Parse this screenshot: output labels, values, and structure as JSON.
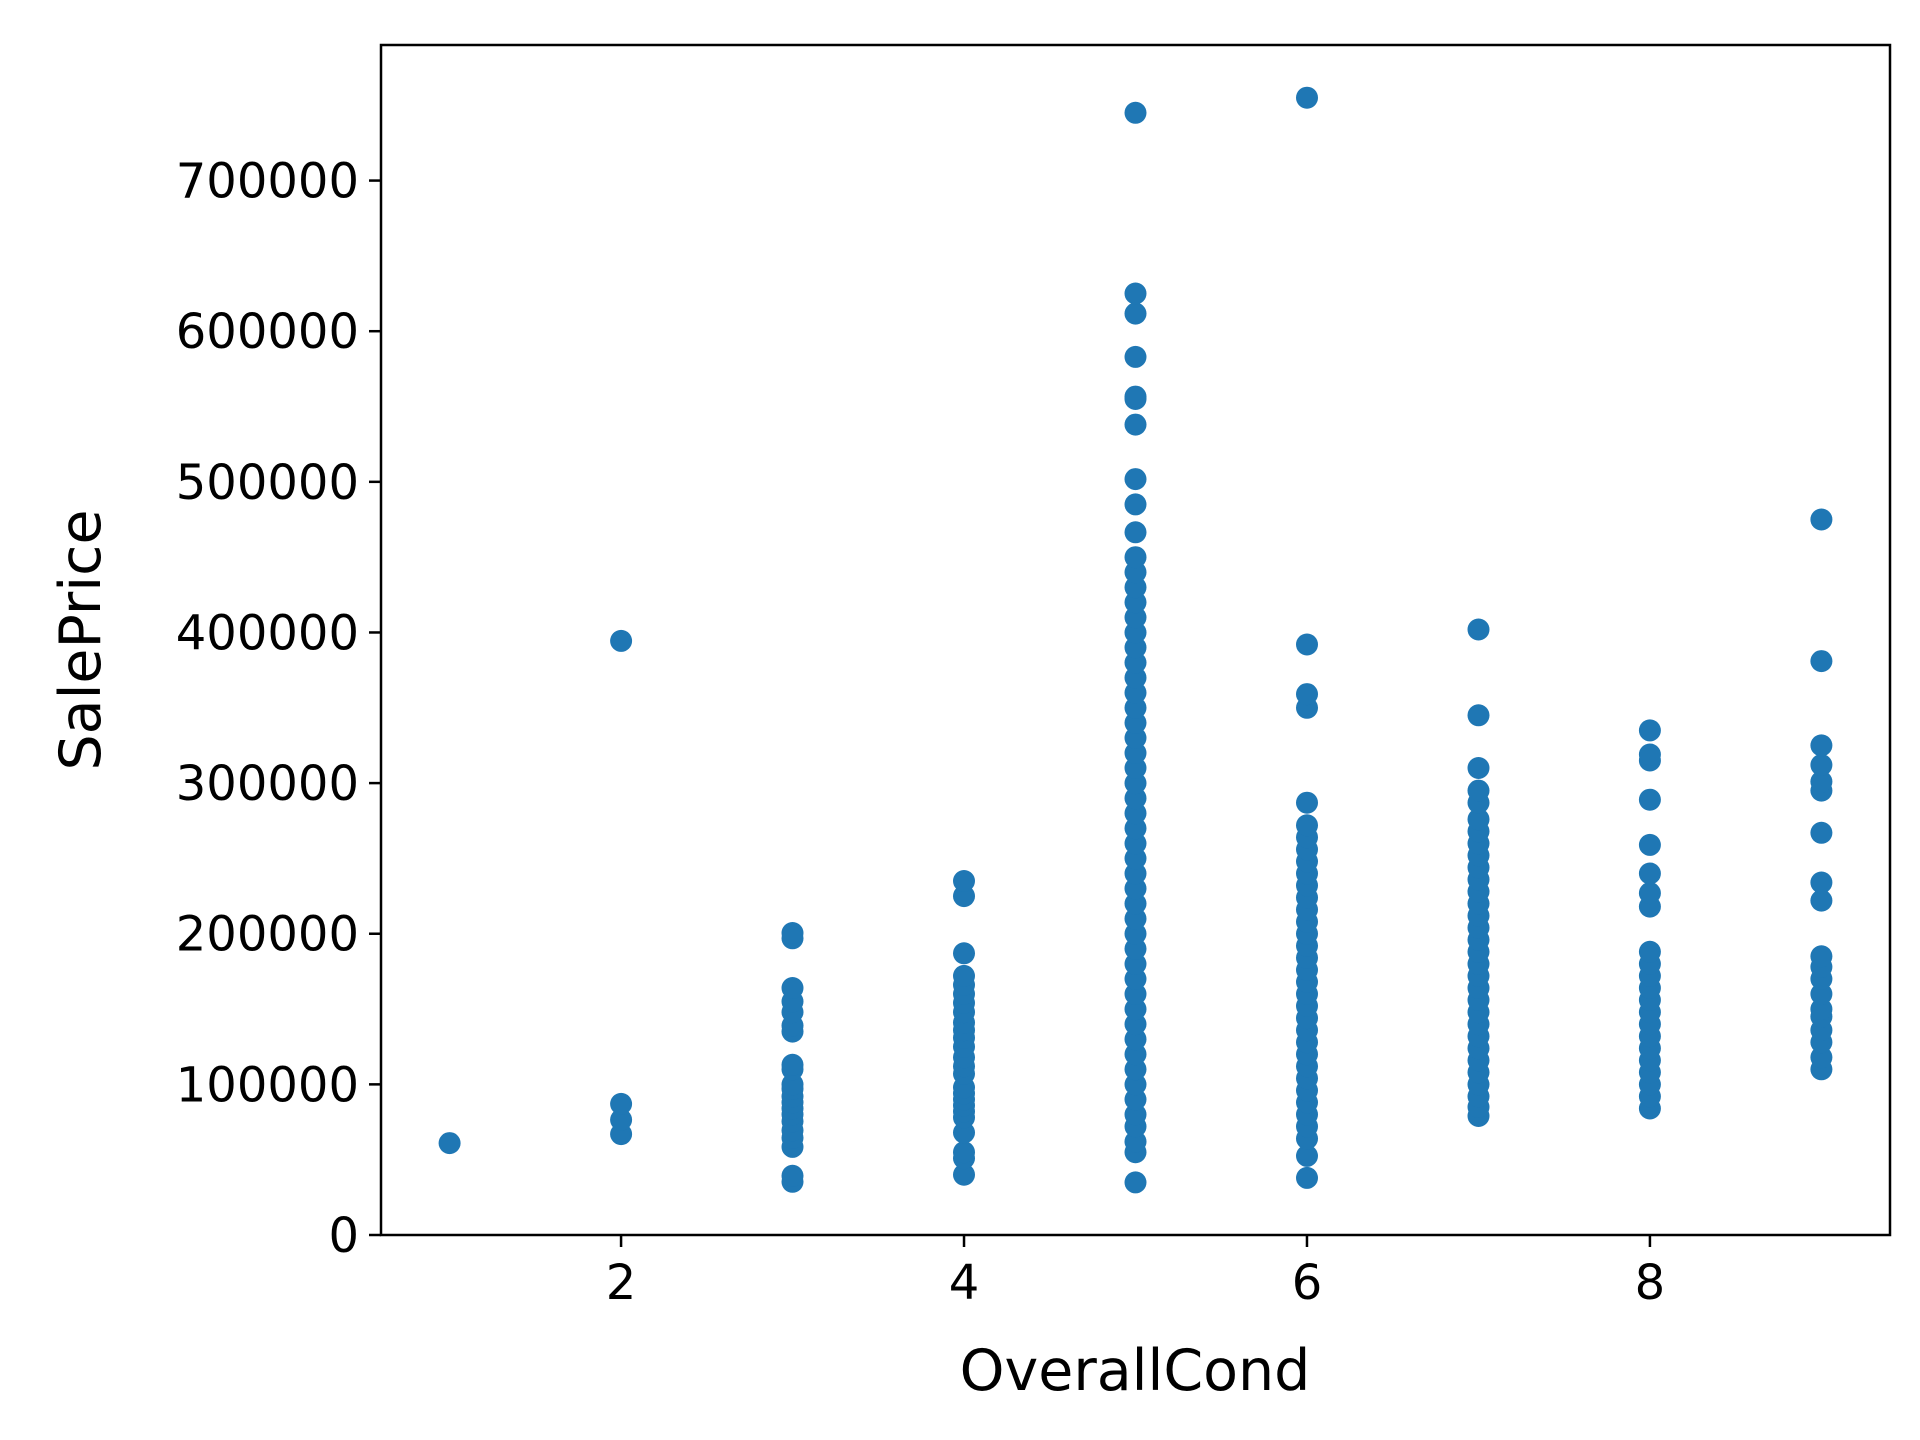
{
  "chart_data": {
    "type": "scatter",
    "title": "",
    "xlabel": "OverallCond",
    "ylabel": "SalePrice",
    "xlim": [
      0.6,
      9.4
    ],
    "ylim": [
      0,
      790000
    ],
    "xticks": [
      2,
      4,
      6,
      8
    ],
    "yticks": [
      0,
      100000,
      200000,
      300000,
      400000,
      500000,
      600000,
      700000
    ],
    "grid": false,
    "legend": "none",
    "marker_color": "#1f77b4",
    "series": [
      {
        "points": [
          [
            1,
            61000
          ],
          [
            2,
            67000
          ],
          [
            2,
            76500
          ],
          [
            2,
            87000
          ],
          [
            2,
            394432
          ],
          [
            3,
            35311
          ],
          [
            3,
            39300
          ],
          [
            3,
            58500
          ],
          [
            3,
            64500
          ],
          [
            3,
            69500
          ],
          [
            3,
            75500
          ],
          [
            3,
            80000
          ],
          [
            3,
            84000
          ],
          [
            3,
            88000
          ],
          [
            3,
            92000
          ],
          [
            3,
            97000
          ],
          [
            3,
            100000
          ],
          [
            3,
            110000
          ],
          [
            3,
            113000
          ],
          [
            3,
            135000
          ],
          [
            3,
            139000
          ],
          [
            3,
            148000
          ],
          [
            3,
            155000
          ],
          [
            3,
            164000
          ],
          [
            3,
            197000
          ],
          [
            3,
            200500
          ],
          [
            4,
            40000
          ],
          [
            4,
            51000
          ],
          [
            4,
            55000
          ],
          [
            4,
            68000
          ],
          [
            4,
            78000
          ],
          [
            4,
            82000
          ],
          [
            4,
            86000
          ],
          [
            4,
            90000
          ],
          [
            4,
            94000
          ],
          [
            4,
            98000
          ],
          [
            4,
            107000
          ],
          [
            4,
            112000
          ],
          [
            4,
            118000
          ],
          [
            4,
            125000
          ],
          [
            4,
            131000
          ],
          [
            4,
            136000
          ],
          [
            4,
            141000
          ],
          [
            4,
            148000
          ],
          [
            4,
            154000
          ],
          [
            4,
            160000
          ],
          [
            4,
            166000
          ],
          [
            4,
            172000
          ],
          [
            4,
            187000
          ],
          [
            4,
            225000
          ],
          [
            4,
            235000
          ],
          [
            5,
            34900
          ],
          [
            5,
            55000
          ],
          [
            5,
            62000
          ],
          [
            5,
            72000
          ],
          [
            5,
            80000
          ],
          [
            5,
            90000
          ],
          [
            5,
            100000
          ],
          [
            5,
            110000
          ],
          [
            5,
            120000
          ],
          [
            5,
            130000
          ],
          [
            5,
            140000
          ],
          [
            5,
            150000
          ],
          [
            5,
            160000
          ],
          [
            5,
            170000
          ],
          [
            5,
            180000
          ],
          [
            5,
            190000
          ],
          [
            5,
            200000
          ],
          [
            5,
            210000
          ],
          [
            5,
            220000
          ],
          [
            5,
            230000
          ],
          [
            5,
            240000
          ],
          [
            5,
            250000
          ],
          [
            5,
            260000
          ],
          [
            5,
            270000
          ],
          [
            5,
            280000
          ],
          [
            5,
            290000
          ],
          [
            5,
            300000
          ],
          [
            5,
            310000
          ],
          [
            5,
            320000
          ],
          [
            5,
            330000
          ],
          [
            5,
            340000
          ],
          [
            5,
            350000
          ],
          [
            5,
            360000
          ],
          [
            5,
            370000
          ],
          [
            5,
            380000
          ],
          [
            5,
            390000
          ],
          [
            5,
            400000
          ],
          [
            5,
            410000
          ],
          [
            5,
            420000
          ],
          [
            5,
            430000
          ],
          [
            5,
            440000
          ],
          [
            5,
            450000
          ],
          [
            5,
            466500
          ],
          [
            5,
            485000
          ],
          [
            5,
            501837
          ],
          [
            5,
            538000
          ],
          [
            5,
            555000
          ],
          [
            5,
            556581
          ],
          [
            5,
            582933
          ],
          [
            5,
            611657
          ],
          [
            5,
            625000
          ],
          [
            5,
            745000
          ],
          [
            6,
            37900
          ],
          [
            6,
            52500
          ],
          [
            6,
            64000
          ],
          [
            6,
            72000
          ],
          [
            6,
            80000
          ],
          [
            6,
            88000
          ],
          [
            6,
            96000
          ],
          [
            6,
            104000
          ],
          [
            6,
            112000
          ],
          [
            6,
            120000
          ],
          [
            6,
            128000
          ],
          [
            6,
            136000
          ],
          [
            6,
            144000
          ],
          [
            6,
            152000
          ],
          [
            6,
            160000
          ],
          [
            6,
            168000
          ],
          [
            6,
            176000
          ],
          [
            6,
            184000
          ],
          [
            6,
            192000
          ],
          [
            6,
            200000
          ],
          [
            6,
            208000
          ],
          [
            6,
            216000
          ],
          [
            6,
            224000
          ],
          [
            6,
            232000
          ],
          [
            6,
            240000
          ],
          [
            6,
            248000
          ],
          [
            6,
            256000
          ],
          [
            6,
            264000
          ],
          [
            6,
            272000
          ],
          [
            6,
            287000
          ],
          [
            6,
            350000
          ],
          [
            6,
            359100
          ],
          [
            6,
            392000
          ],
          [
            6,
            755000
          ],
          [
            7,
            79000
          ],
          [
            7,
            85000
          ],
          [
            7,
            92000
          ],
          [
            7,
            100000
          ],
          [
            7,
            108000
          ],
          [
            7,
            116000
          ],
          [
            7,
            124000
          ],
          [
            7,
            132000
          ],
          [
            7,
            140000
          ],
          [
            7,
            148000
          ],
          [
            7,
            156000
          ],
          [
            7,
            164000
          ],
          [
            7,
            172000
          ],
          [
            7,
            180000
          ],
          [
            7,
            188000
          ],
          [
            7,
            196000
          ],
          [
            7,
            204000
          ],
          [
            7,
            212000
          ],
          [
            7,
            220000
          ],
          [
            7,
            228000
          ],
          [
            7,
            236000
          ],
          [
            7,
            244000
          ],
          [
            7,
            252000
          ],
          [
            7,
            260000
          ],
          [
            7,
            268000
          ],
          [
            7,
            276000
          ],
          [
            7,
            287000
          ],
          [
            7,
            295000
          ],
          [
            7,
            310000
          ],
          [
            7,
            345000
          ],
          [
            7,
            402000
          ],
          [
            8,
            84000
          ],
          [
            8,
            92000
          ],
          [
            8,
            100000
          ],
          [
            8,
            108000
          ],
          [
            8,
            116000
          ],
          [
            8,
            124000
          ],
          [
            8,
            132000
          ],
          [
            8,
            140000
          ],
          [
            8,
            148000
          ],
          [
            8,
            156000
          ],
          [
            8,
            164000
          ],
          [
            8,
            172000
          ],
          [
            8,
            180000
          ],
          [
            8,
            188000
          ],
          [
            8,
            218000
          ],
          [
            8,
            227000
          ],
          [
            8,
            240000
          ],
          [
            8,
            259000
          ],
          [
            8,
            289000
          ],
          [
            8,
            315000
          ],
          [
            8,
            319000
          ],
          [
            8,
            335000
          ],
          [
            9,
            110000
          ],
          [
            9,
            118000
          ],
          [
            9,
            128000
          ],
          [
            9,
            136000
          ],
          [
            9,
            145000
          ],
          [
            9,
            150000
          ],
          [
            9,
            160000
          ],
          [
            9,
            170000
          ],
          [
            9,
            178000
          ],
          [
            9,
            185000
          ],
          [
            9,
            222000
          ],
          [
            9,
            234000
          ],
          [
            9,
            267000
          ],
          [
            9,
            295000
          ],
          [
            9,
            301000
          ],
          [
            9,
            312000
          ],
          [
            9,
            325000
          ],
          [
            9,
            381000
          ],
          [
            9,
            475000
          ]
        ]
      }
    ]
  }
}
